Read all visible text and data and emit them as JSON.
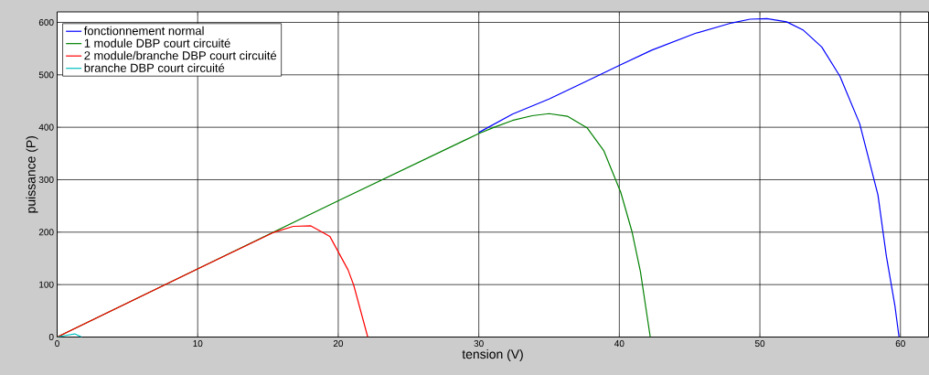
{
  "chart_data": {
    "type": "line",
    "xlabel": "tension (V)",
    "ylabel": "puissance (P)",
    "xlim": [
      0,
      62
    ],
    "ylim": [
      0,
      620
    ],
    "xticks": [
      0,
      10,
      20,
      30,
      40,
      50,
      60
    ],
    "yticks": [
      0,
      100,
      200,
      300,
      400,
      500,
      600
    ],
    "grid": true,
    "legend": "top left",
    "marker": "none",
    "line_style": "solid",
    "series": [
      {
        "name": "fonctionnement normal",
        "color": "#0000ff",
        "x": [
          30,
          32.4,
          35.0,
          37.6,
          40.0,
          42.3,
          45.4,
          48.0,
          49.3,
          50.5,
          51.9,
          53.1,
          54.4,
          55.7,
          57.1,
          58.4,
          59.0,
          59.6,
          59.9
        ],
        "values": [
          390,
          425,
          454,
          487,
          518,
          547,
          579,
          599,
          606,
          607,
          601,
          585,
          553,
          497,
          407,
          271,
          154,
          61,
          0
        ]
      },
      {
        "name": "1 module DBP court circuité",
        "color": "#008000",
        "x": [
          0,
          20,
          30,
          31.1,
          32.4,
          33.8,
          35.0,
          36.3,
          37.7,
          38.9,
          40.1,
          40.9,
          41.5,
          42.2
        ],
        "values": [
          0,
          260,
          388,
          400,
          413,
          422,
          426,
          421,
          399,
          355,
          276,
          201,
          125,
          0
        ]
      },
      {
        "name": "2 module/branche DBP court circuité",
        "color": "#ff0000",
        "x": [
          0,
          5,
          10,
          15.45,
          16.8,
          18.05,
          19.4,
          20.7,
          21.1,
          22.1
        ],
        "values": [
          0,
          65,
          130,
          200,
          211,
          212,
          192,
          128,
          99,
          0
        ]
      },
      {
        "name": "branche DBP court circuité",
        "color": "#00bfbf",
        "x": [
          0,
          0.6,
          1.25,
          1.75
        ],
        "values": [
          0,
          3,
          6,
          0
        ]
      }
    ]
  }
}
